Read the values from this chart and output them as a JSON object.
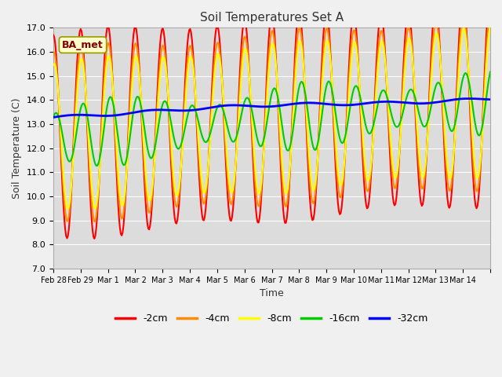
{
  "title": "Soil Temperatures Set A",
  "xlabel": "Time",
  "ylabel": "Soil Temperature (C)",
  "ylim": [
    7.0,
    17.0
  ],
  "yticks": [
    7.0,
    8.0,
    9.0,
    10.0,
    11.0,
    12.0,
    13.0,
    14.0,
    15.0,
    16.0,
    17.0
  ],
  "xtick_positions": [
    0,
    1,
    2,
    3,
    4,
    5,
    6,
    7,
    8,
    9,
    10,
    11,
    12,
    13,
    14,
    15,
    16
  ],
  "xtick_labels": [
    "Feb 28",
    "Feb 29",
    "Mar 1",
    "Mar 2",
    "Mar 3",
    "Mar 4",
    "Mar 5",
    "Mar 6",
    "Mar 7",
    "Mar 8",
    "Mar 9",
    "Mar 10",
    "Mar 11",
    "Mar 12",
    "Mar 13",
    "Mar 14",
    ""
  ],
  "legend_labels": [
    "-2cm",
    "-4cm",
    "-8cm",
    "-16cm",
    "-32cm"
  ],
  "colors": [
    "#ff0000",
    "#ff8c00",
    "#ffff00",
    "#00cc00",
    "#0000ff"
  ],
  "linewidths": [
    1.5,
    1.5,
    1.5,
    1.5,
    2.0
  ],
  "annotation_text": "BA_met",
  "background_color": "#dcdcdc",
  "grid_color": "#ffffff",
  "n_points": 480,
  "xlim": [
    0,
    16
  ]
}
